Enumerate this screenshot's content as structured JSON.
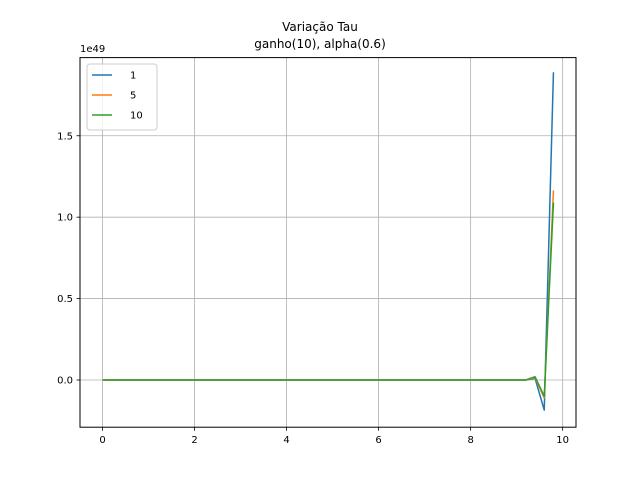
{
  "chart_data": {
    "type": "line",
    "title": "Variação Tau",
    "subtitle": "ganho(10), alpha(0.6)",
    "xlabel": "",
    "ylabel": "",
    "y_offset_label": "1e49",
    "xlim": [
      -0.49,
      10.29
    ],
    "ylim": [
      -0.29,
      1.98
    ],
    "x_ticks": [
      0,
      2,
      4,
      6,
      8,
      10
    ],
    "x_tick_labels": [
      "0",
      "2",
      "4",
      "6",
      "8",
      "10"
    ],
    "y_ticks": [
      0.0,
      0.5,
      1.0,
      1.5
    ],
    "y_tick_labels": [
      "0.0",
      "0.5",
      "1.0",
      "1.5"
    ],
    "grid": true,
    "legend_position": "top-left",
    "x": [
      0,
      0.2,
      0.4,
      0.6,
      0.8,
      1.0,
      1.2,
      1.4,
      1.6,
      1.8,
      2.0,
      2.2,
      2.4,
      2.6,
      2.8,
      3.0,
      3.2,
      3.4,
      3.6,
      3.8,
      4.0,
      4.2,
      4.4,
      4.6,
      4.8,
      5.0,
      5.2,
      5.4,
      5.6,
      5.8,
      6.0,
      6.2,
      6.4,
      6.6,
      6.8,
      7.0,
      7.2,
      7.4,
      7.6,
      7.8,
      8.0,
      8.2,
      8.4,
      8.6,
      8.8,
      9.0,
      9.2,
      9.4,
      9.6,
      9.8
    ],
    "series": [
      {
        "name": "1",
        "color": "#1f77b4",
        "values": [
          0,
          0,
          0,
          0,
          0,
          0,
          0,
          0,
          0,
          0,
          0,
          0,
          0,
          0,
          0,
          0,
          0,
          0,
          0,
          0,
          0,
          0,
          0,
          0,
          0,
          0,
          0,
          0,
          0,
          0,
          0,
          0,
          0,
          0,
          0,
          0,
          0,
          0,
          0,
          0,
          0,
          0,
          0,
          0,
          0,
          0,
          0,
          0.01,
          -0.185,
          1.89
        ]
      },
      {
        "name": "5",
        "color": "#ff7f0e",
        "values": [
          0,
          0,
          0,
          0,
          0,
          0,
          0,
          0,
          0,
          0,
          0,
          0,
          0,
          0,
          0,
          0,
          0,
          0,
          0,
          0,
          0,
          0,
          0,
          0,
          0,
          0,
          0,
          0,
          0,
          0,
          0,
          0,
          0,
          0,
          0,
          0,
          0,
          0,
          0,
          0,
          0,
          0,
          0,
          0,
          0,
          0,
          0,
          0.015,
          -0.11,
          1.165
        ]
      },
      {
        "name": "10",
        "color": "#2ca02c",
        "values": [
          0,
          0,
          0,
          0,
          0,
          0,
          0,
          0,
          0,
          0,
          0,
          0,
          0,
          0,
          0,
          0,
          0,
          0,
          0,
          0,
          0,
          0,
          0,
          0,
          0,
          0,
          0,
          0,
          0,
          0,
          0,
          0,
          0,
          0,
          0,
          0,
          0,
          0,
          0,
          0,
          0,
          0,
          0,
          0,
          0,
          0,
          0,
          0.02,
          -0.1,
          1.09
        ]
      }
    ]
  }
}
